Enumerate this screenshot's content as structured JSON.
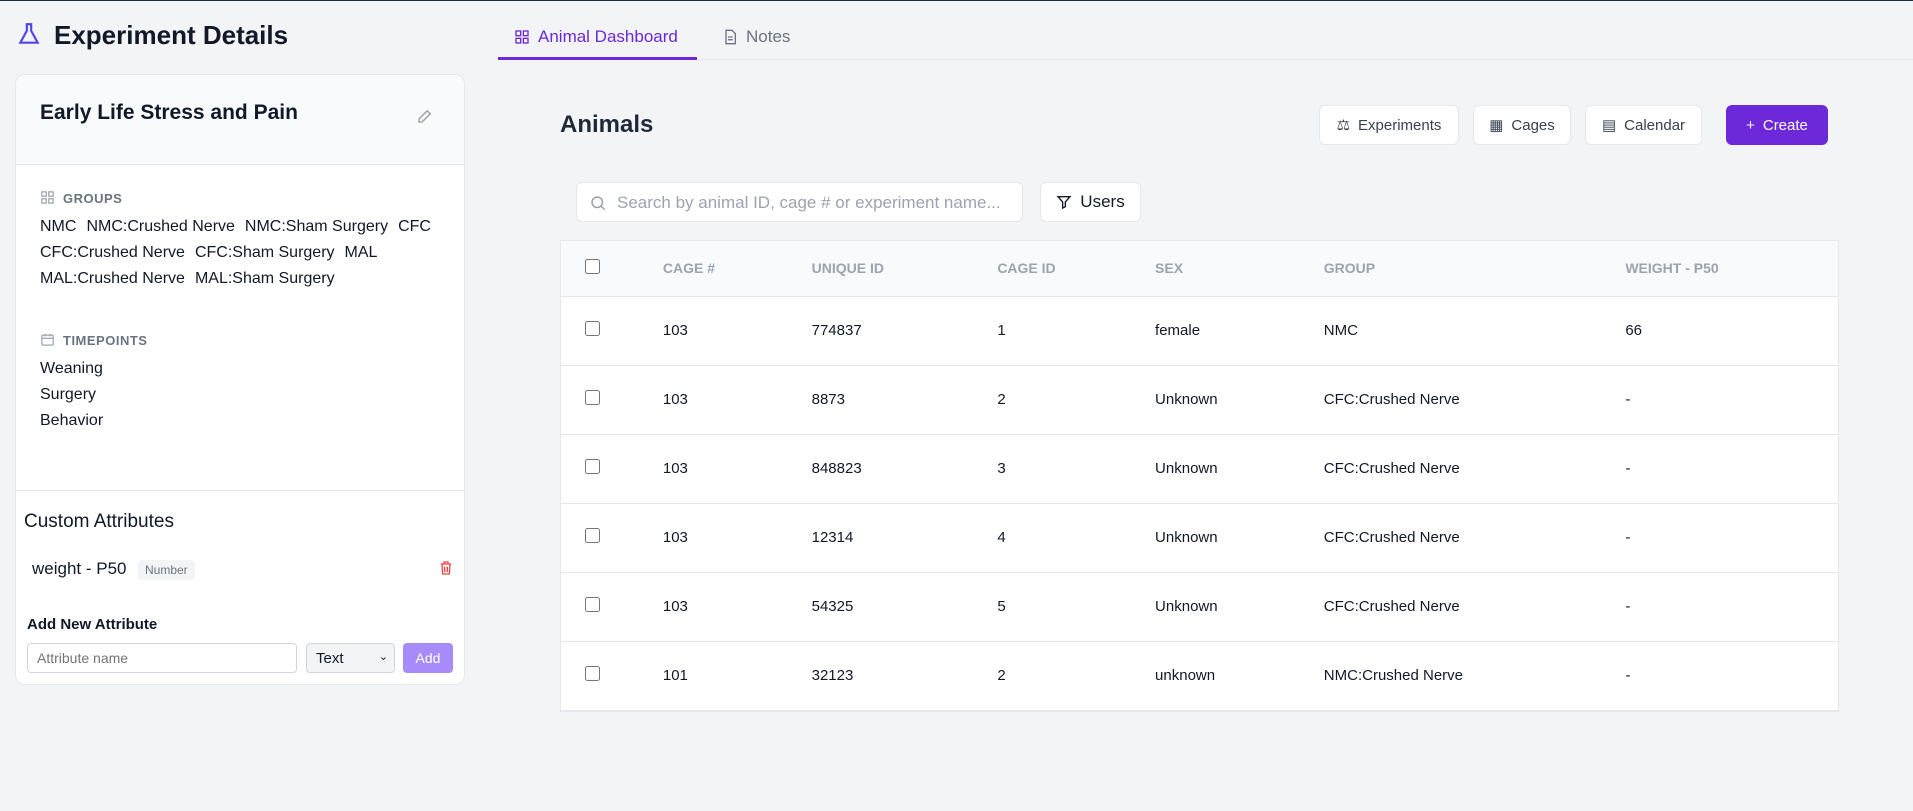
{
  "header": {
    "title": "Experiment Details"
  },
  "tabs": [
    "Animal Dashboard",
    "Notes"
  ],
  "experiment": {
    "name": "Early Life Stress and Pain",
    "groups_label": "GROUPS",
    "groups": [
      "NMC",
      "NMC:Crushed Nerve",
      "NMC:Sham Surgery",
      "CFC",
      "CFC:Crushed Nerve",
      "CFC:Sham Surgery",
      "MAL",
      "MAL:Crushed Nerve",
      "MAL:Sham Surgery"
    ],
    "timepoints_label": "TIMEPOINTS",
    "timepoints": [
      "Weaning",
      "Surgery",
      "Behavior"
    ]
  },
  "custom_attributes": {
    "title": "Custom Attributes",
    "items": [
      {
        "name": "weight - P50",
        "type": "Number"
      }
    ],
    "add_label": "Add New Attribute",
    "placeholder": "Attribute name",
    "type_option": "Text",
    "add_button": "Add"
  },
  "animals": {
    "title": "Animals",
    "buttons": [
      "Experiments",
      "Cages",
      "Calendar",
      "Create"
    ],
    "search_placeholder": "Search by animal ID, cage # or experiment name...",
    "filter_button": "Users",
    "table": {
      "columns": [
        "CAGE #",
        "UNIQUE ID",
        "CAGE ID",
        "SEX",
        "GROUP",
        "WEIGHT - P50"
      ],
      "rows": [
        [
          "103",
          "774837",
          "1",
          "female",
          "NMC",
          "66"
        ],
        [
          "103",
          "8873",
          "2",
          "Unknown",
          "CFC:Crushed Nerve",
          "-"
        ],
        [
          "103",
          "848823",
          "3",
          "Unknown",
          "CFC:Crushed Nerve",
          "-"
        ],
        [
          "103",
          "12314",
          "4",
          "Unknown",
          "CFC:Crushed Nerve",
          "-"
        ],
        [
          "103",
          "54325",
          "5",
          "Unknown",
          "CFC:Crushed Nerve",
          "-"
        ],
        [
          "101",
          "32123",
          "2",
          "unknown",
          "NMC:Crushed Nerve",
          "-"
        ]
      ]
    }
  }
}
